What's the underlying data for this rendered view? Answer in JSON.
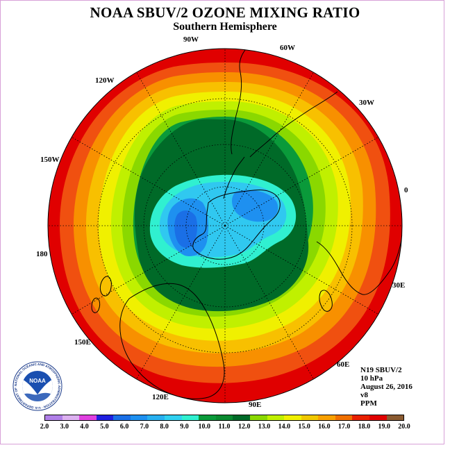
{
  "title": "NOAA SBUV/2 OZONE MIXING RATIO",
  "subtitle": "Southern Hemisphere",
  "longitude_labels": {
    "lon_90w": "90W",
    "lon_60w": "60W",
    "lon_120w": "120W",
    "lon_30w": "30W",
    "lon_150w": "150W",
    "lon_0": "0",
    "lon_180": "180",
    "lon_30e": "30E",
    "lon_150e": "150E",
    "lon_60e": "60E",
    "lon_120e": "120E",
    "lon_90e": "90E"
  },
  "info": {
    "instrument": "N19 SBUV/2",
    "level": "10 hPa",
    "date": "August 26, 2016",
    "version": "v8",
    "units": "PPM"
  },
  "logo": {
    "text": "NOAA",
    "ring_text": "NATIONAL OCEANIC AND ATMOSPHERIC ADMINISTRATION · U.S. DEPARTMENT OF COMMERCE"
  },
  "colorbar": {
    "ticks": [
      "2.0",
      "3.0",
      "4.0",
      "5.0",
      "6.0",
      "7.0",
      "8.0",
      "9.0",
      "10.0",
      "11.0",
      "12.0",
      "13.0",
      "14.0",
      "15.0",
      "16.0",
      "17.0",
      "18.0",
      "19.0",
      "20.0"
    ],
    "colors": [
      "#b07fe8",
      "#dcb0f0",
      "#e040e0",
      "#2020e0",
      "#1a6fe6",
      "#1e90f0",
      "#28b0f0",
      "#30d0f0",
      "#30f0d0",
      "#0a9a3a",
      "#0a8a30",
      "#006a28",
      "#8ad800",
      "#c0f000",
      "#f0f000",
      "#f0c800",
      "#f8a000",
      "#f07000",
      "#e82000",
      "#e00000",
      "#8a5a30"
    ]
  },
  "map_colors": {
    "c18": "#e00000",
    "c17": "#f05010",
    "c16": "#f89000",
    "c15": "#f8c000",
    "c14": "#f0f000",
    "c13": "#c0f000",
    "c12": "#8ad800",
    "c11": "#0a9a3a",
    "c10": "#006a28",
    "c9": "#30f0d0",
    "c8": "#30c8f0",
    "c7": "#1e90f0",
    "c6": "#1a6fe6"
  }
}
